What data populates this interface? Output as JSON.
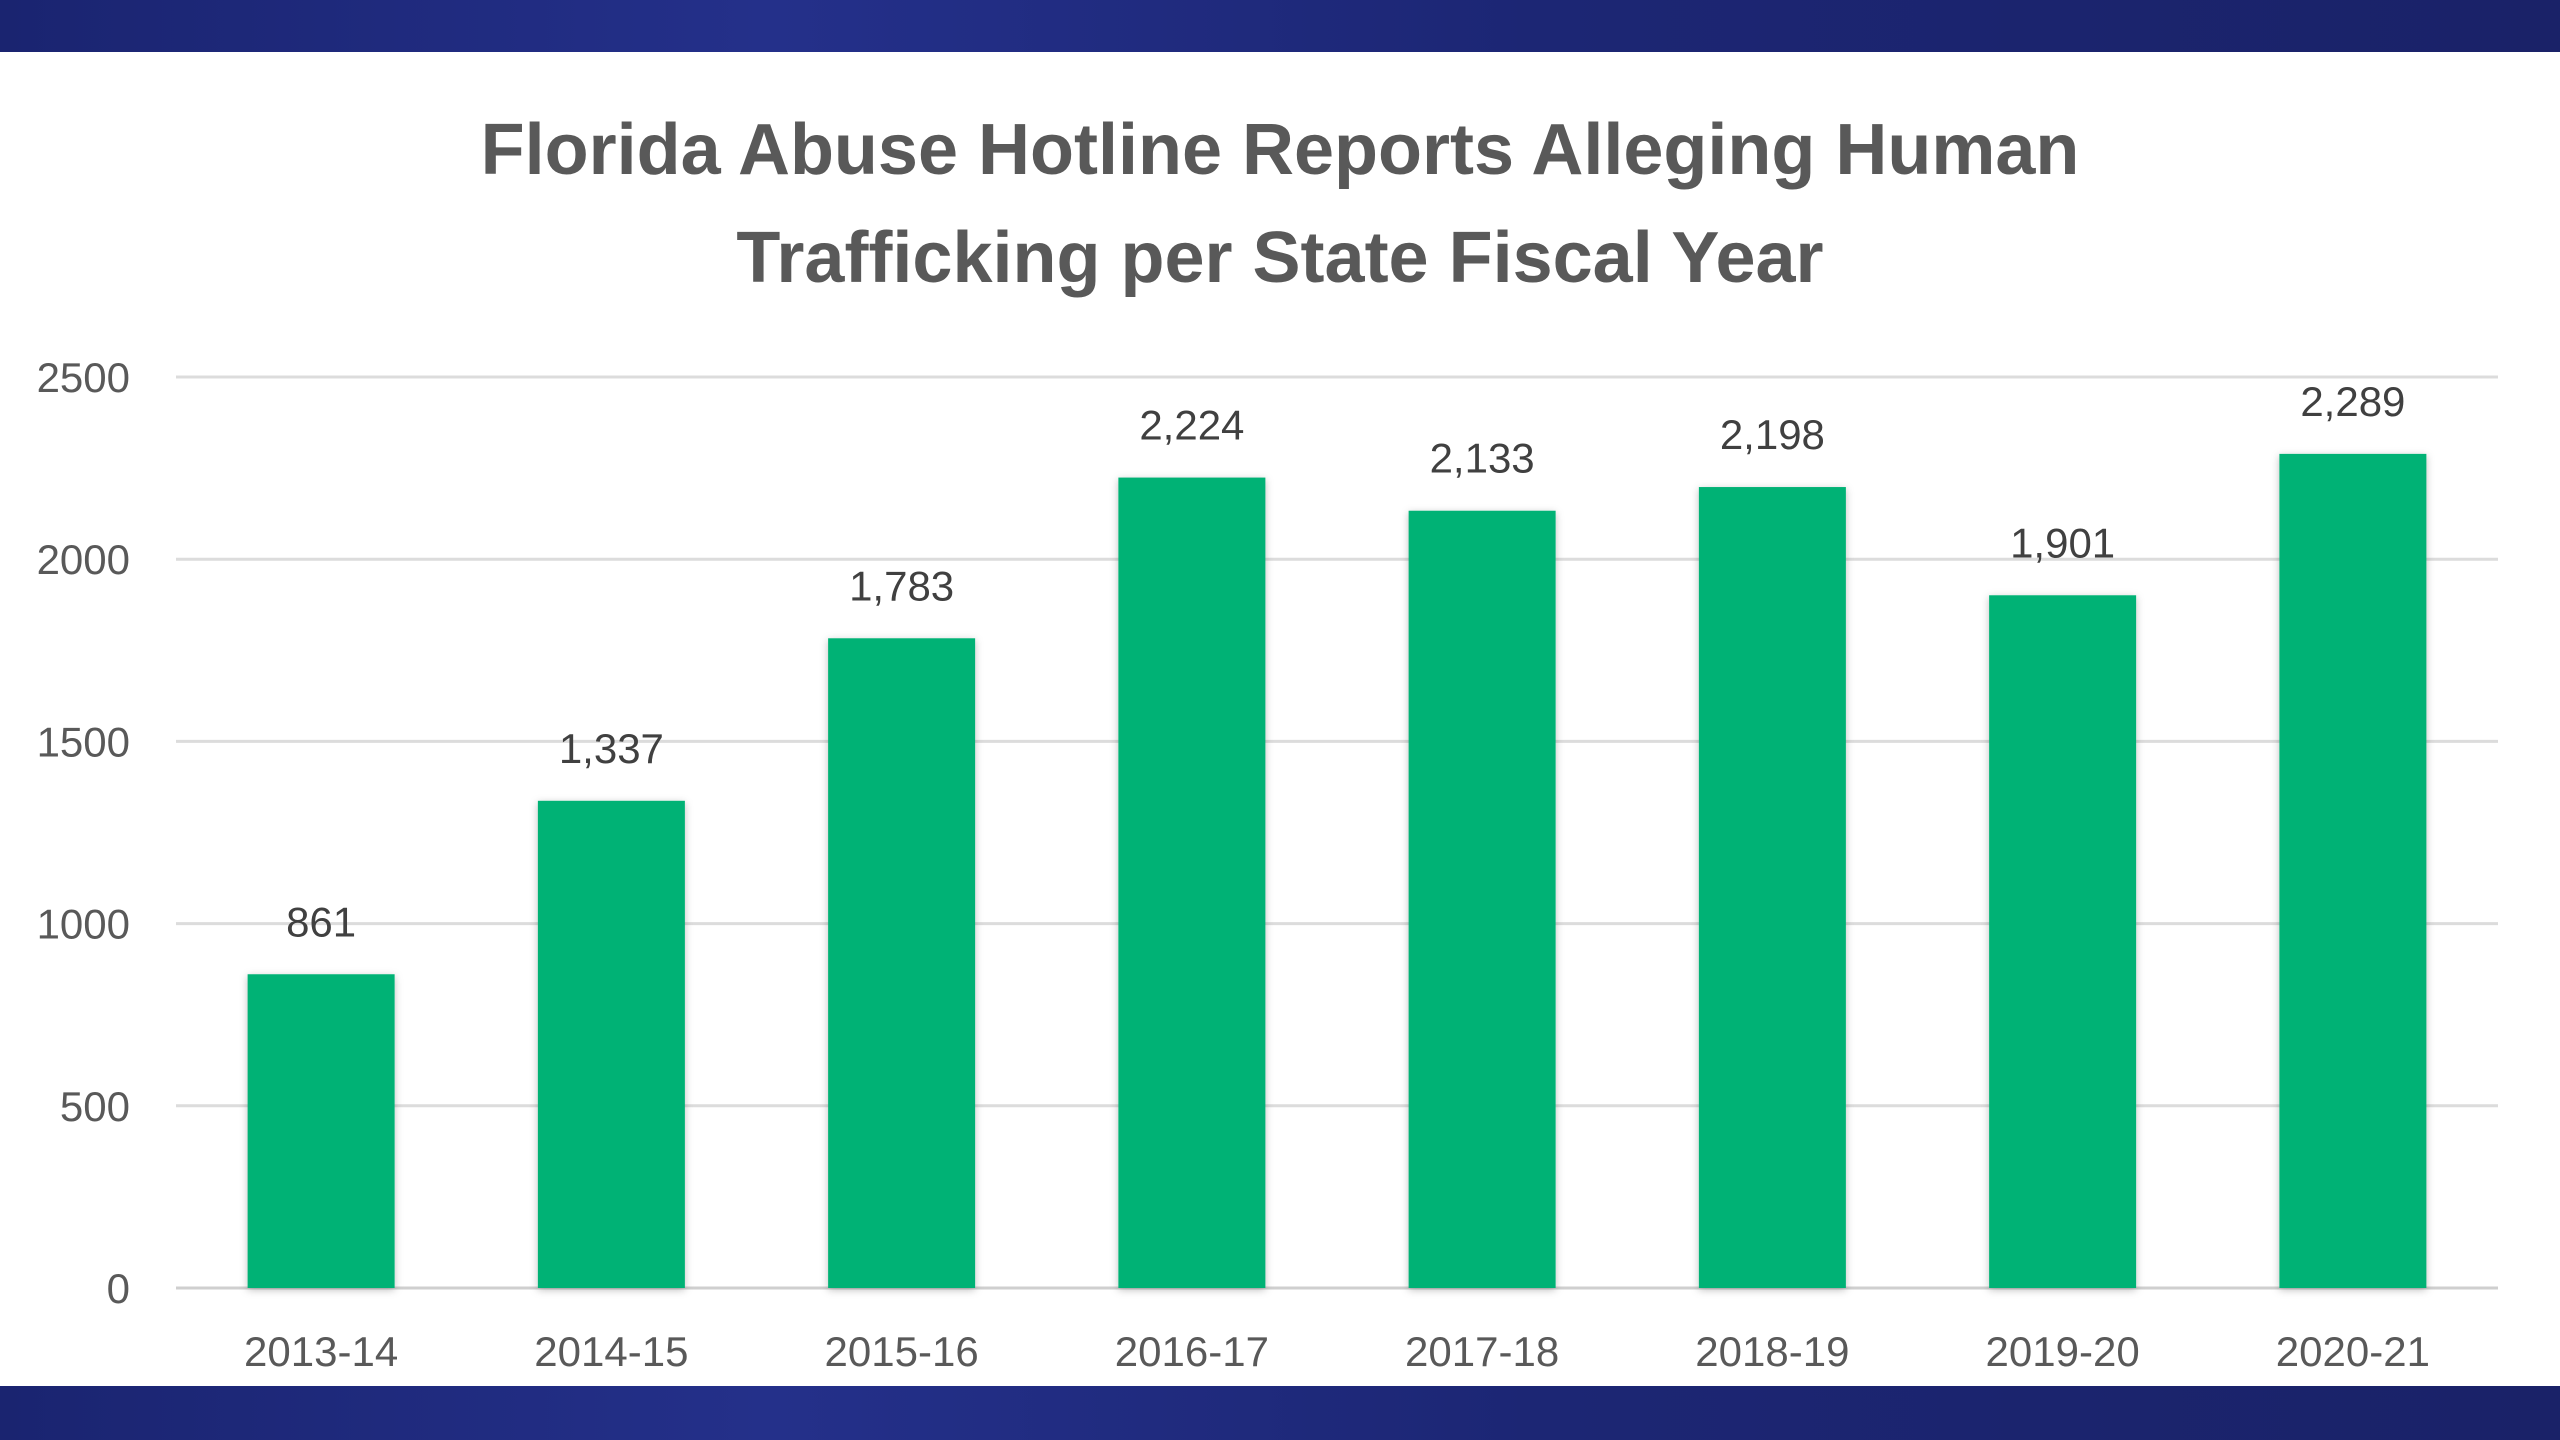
{
  "chart_data": {
    "type": "bar",
    "title": "Florida Abuse Hotline Reports Alleging Human Trafficking per State Fiscal Year",
    "title_lines": [
      "Florida Abuse Hotline Reports Alleging Human",
      "Trafficking per State Fiscal Year"
    ],
    "categories": [
      "2013-14",
      "2014-15",
      "2015-16",
      "2016-17",
      "2017-18",
      "2018-19",
      "2019-20",
      "2020-21"
    ],
    "values": [
      861,
      1337,
      1783,
      2224,
      2133,
      2198,
      1901,
      2289
    ],
    "data_labels": [
      "861",
      "1,337",
      "1,783",
      "2,224",
      "2,133",
      "2,198",
      "1,901",
      "2,289"
    ],
    "xlabel": "",
    "ylabel": "",
    "ylim": [
      0,
      2500
    ],
    "yticks": [
      "0",
      "500",
      "1000",
      "1500",
      "2000",
      "2500"
    ],
    "grid": true,
    "legend": "none",
    "colors": {
      "bar": "#00b274",
      "band": "#1f2a7c"
    }
  }
}
